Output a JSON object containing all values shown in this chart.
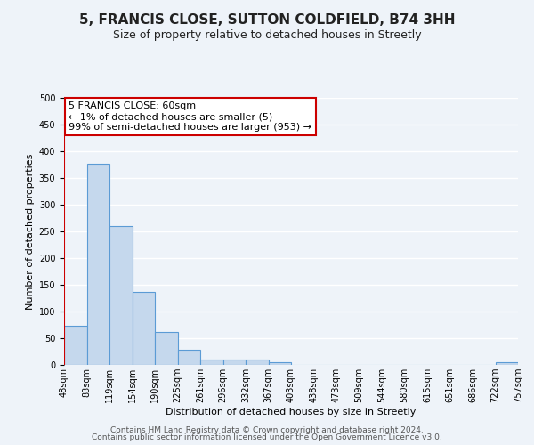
{
  "title": "5, FRANCIS CLOSE, SUTTON COLDFIELD, B74 3HH",
  "subtitle": "Size of property relative to detached houses in Streetly",
  "xlabel": "Distribution of detached houses by size in Streetly",
  "ylabel": "Number of detached properties",
  "bar_values": [
    73,
    377,
    260,
    136,
    61,
    29,
    10,
    10,
    10,
    5,
    0,
    0,
    0,
    0,
    0,
    0,
    0,
    0,
    0,
    5
  ],
  "bar_labels": [
    "48sqm",
    "83sqm",
    "119sqm",
    "154sqm",
    "190sqm",
    "225sqm",
    "261sqm",
    "296sqm",
    "332sqm",
    "367sqm",
    "403sqm",
    "438sqm",
    "473sqm",
    "509sqm",
    "544sqm",
    "580sqm",
    "615sqm",
    "651sqm",
    "686sqm",
    "722sqm",
    "757sqm"
  ],
  "bar_color": "#c5d8ed",
  "bar_edge_color": "#5b9bd5",
  "annotation_box_text": "5 FRANCIS CLOSE: 60sqm\n← 1% of detached houses are smaller (5)\n99% of semi-detached houses are larger (953) →",
  "annotation_box_color": "#ffffff",
  "annotation_box_edge_color": "#cc0000",
  "ylim": [
    0,
    500
  ],
  "yticks": [
    0,
    50,
    100,
    150,
    200,
    250,
    300,
    350,
    400,
    450,
    500
  ],
  "footer_line1": "Contains HM Land Registry data © Crown copyright and database right 2024.",
  "footer_line2": "Contains public sector information licensed under the Open Government Licence v3.0.",
  "background_color": "#eef3f9",
  "plot_background_color": "#eef3f9",
  "grid_color": "#ffffff",
  "title_fontsize": 11,
  "subtitle_fontsize": 9,
  "axis_label_fontsize": 8,
  "tick_fontsize": 7,
  "annotation_fontsize": 8,
  "footer_fontsize": 6.5
}
